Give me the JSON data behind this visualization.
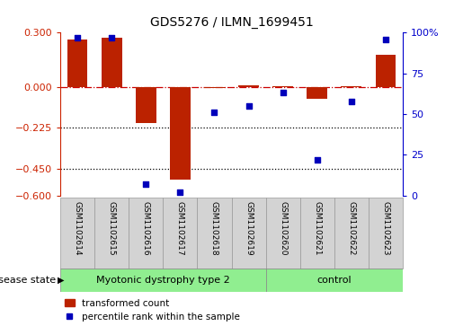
{
  "title": "GDS5276 / ILMN_1699451",
  "categories": [
    "GSM1102614",
    "GSM1102615",
    "GSM1102616",
    "GSM1102617",
    "GSM1102618",
    "GSM1102619",
    "GSM1102620",
    "GSM1102621",
    "GSM1102622",
    "GSM1102623"
  ],
  "red_values": [
    0.26,
    0.27,
    -0.2,
    -0.51,
    -0.005,
    0.007,
    0.005,
    -0.065,
    0.005,
    0.18
  ],
  "blue_values": [
    97,
    97,
    7,
    2,
    51,
    55,
    63,
    22,
    58,
    96
  ],
  "ylim_left": [
    -0.6,
    0.3
  ],
  "ylim_right": [
    0,
    100
  ],
  "yticks_left": [
    0.3,
    0.0,
    -0.225,
    -0.45,
    -0.6
  ],
  "yticks_right": [
    100,
    75,
    50,
    25,
    0
  ],
  "hline_y": 0.0,
  "dotted_lines": [
    -0.225,
    -0.45
  ],
  "group1_label": "Myotonic dystrophy type 2",
  "group2_label": "control",
  "group1_count": 6,
  "group2_count": 4,
  "disease_state_label": "disease state",
  "legend_red": "transformed count",
  "legend_blue": "percentile rank within the sample",
  "bar_color": "#BB2200",
  "dot_color": "#0000BB",
  "group1_color": "#90EE90",
  "group2_color": "#90EE90",
  "hline_color": "#CC0000",
  "dotted_color": "#000000",
  "right_axis_color": "#0000CC",
  "left_axis_color": "#CC2200",
  "sample_box_color": "#D3D3D3",
  "sample_box_edge": "#999999"
}
